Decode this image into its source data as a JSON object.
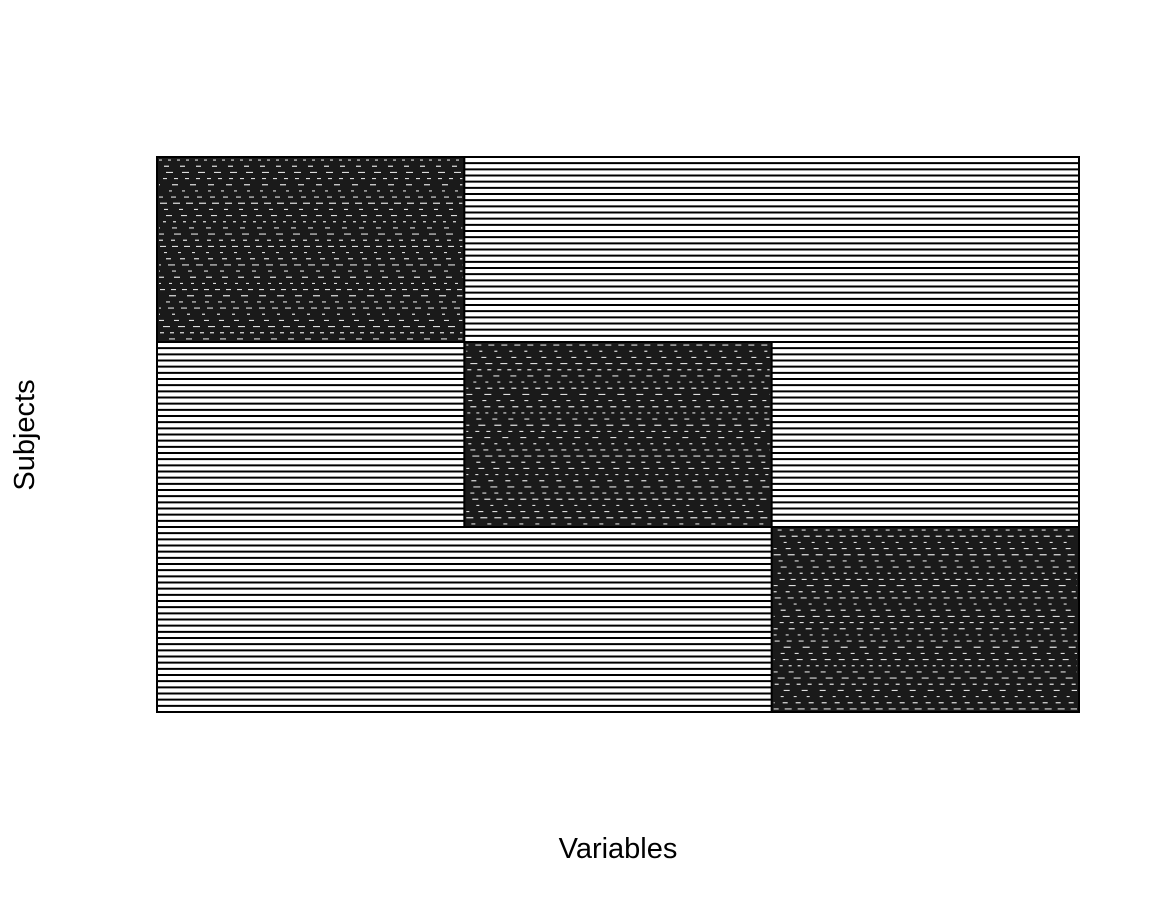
{
  "chart_data": {
    "type": "heatmap",
    "title": "",
    "xlabel": "Variables",
    "ylabel": "Subjects",
    "axes_ticks": false,
    "grid": false,
    "n_subjects": 90,
    "n_variables": 3,
    "blocks": [
      {
        "variable_block": 1,
        "subjects_from": 1,
        "subjects_to": 30,
        "value": 1
      },
      {
        "variable_block": 2,
        "subjects_from": 31,
        "subjects_to": 60,
        "value": 1
      },
      {
        "variable_block": 3,
        "subjects_from": 61,
        "subjects_to": 90,
        "value": 1
      }
    ],
    "colors": {
      "line": "#000000",
      "background": "#ffffff"
    }
  }
}
